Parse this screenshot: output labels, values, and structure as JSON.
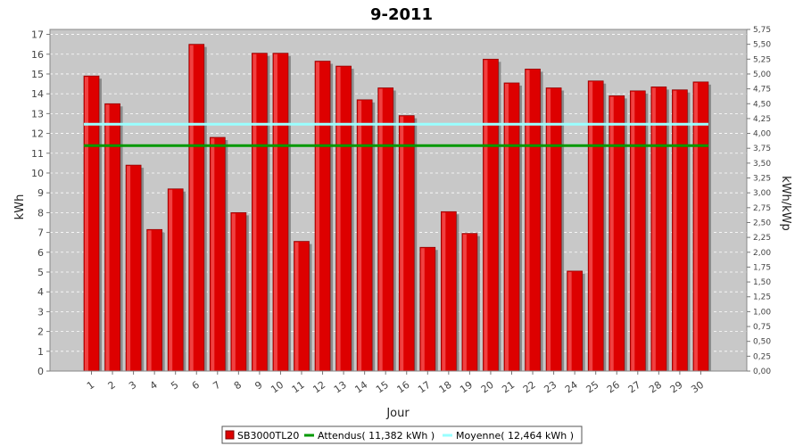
{
  "chart_data": {
    "type": "bar",
    "title": "9-2011",
    "xlabel": "Jour",
    "ylabel": "kWh",
    "ylabel_right": "kWh/kWp",
    "ylim": [
      0,
      17.25
    ],
    "ylim_right": [
      0,
      5.75
    ],
    "y_ticks": [
      "0",
      "1",
      "2",
      "3",
      "4",
      "5",
      "6",
      "7",
      "8",
      "9",
      "10",
      "11",
      "12",
      "13",
      "14",
      "15",
      "16",
      "17"
    ],
    "y_ticks_right": [
      "0,00",
      "0,25",
      "0,50",
      "0,75",
      "1,00",
      "1,25",
      "1,50",
      "1,75",
      "2,00",
      "2,25",
      "2,50",
      "2,75",
      "3,00",
      "3,25",
      "3,50",
      "3,75",
      "4,00",
      "4,25",
      "4,50",
      "4,75",
      "5,00",
      "5,25",
      "5,50",
      "5,75"
    ],
    "categories": [
      "1",
      "2",
      "3",
      "4",
      "5",
      "6",
      "7",
      "8",
      "9",
      "10",
      "11",
      "12",
      "13",
      "14",
      "15",
      "16",
      "17",
      "18",
      "19",
      "20",
      "21",
      "22",
      "23",
      "24",
      "25",
      "26",
      "27",
      "28",
      "29",
      "30"
    ],
    "series": [
      {
        "name": "SB3000TL20",
        "color": "#dd0000",
        "values": [
          14.9,
          13.5,
          10.4,
          7.15,
          9.2,
          16.5,
          11.8,
          8.0,
          16.05,
          16.05,
          6.55,
          15.65,
          15.4,
          13.7,
          14.3,
          12.9,
          6.25,
          8.05,
          6.95,
          15.75,
          14.55,
          15.25,
          14.3,
          5.05,
          14.65,
          13.9,
          14.15,
          14.35,
          14.2,
          14.6
        ]
      }
    ],
    "reference_lines": [
      {
        "name": "Attendus",
        "legend": "Attendus( 11,382 kWh )",
        "value": 11.382,
        "color": "#009900"
      },
      {
        "name": "Moyenne",
        "legend": "Moyenne( 12,464 kWh )",
        "value": 12.464,
        "color": "#99ffff"
      }
    ],
    "legend": [
      "SB3000TL20",
      "Attendus( 11,382 kWh )",
      "Moyenne( 12,464 kWh )"
    ],
    "legend_position": "bottom",
    "grid": true,
    "plot_background": "#c8c8c8"
  }
}
